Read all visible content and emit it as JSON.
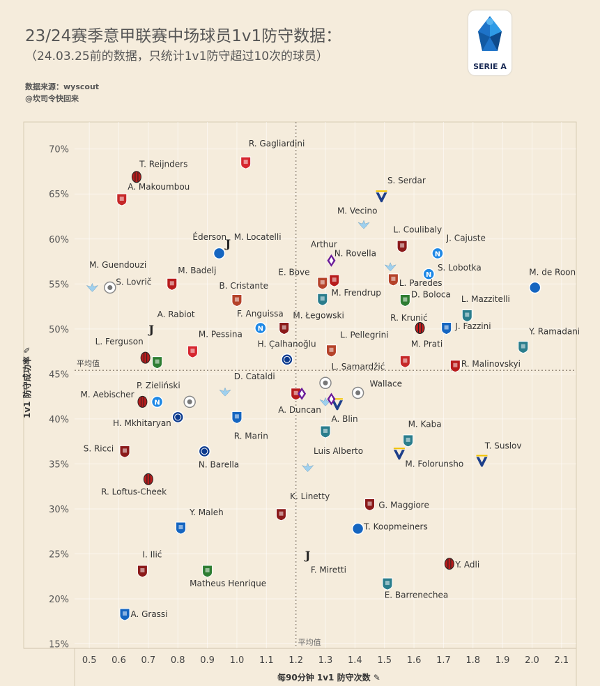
{
  "header": {
    "title_line1": "23/24赛季意甲联赛中场球员1v1防守数据：",
    "title_line2": "（24.03.25前的数据，只统计1v1防守超过10次的球员）",
    "source_line1": "数据来源：wyscout",
    "source_line2": "@坎司令快回来",
    "logo_text": "SERIE A"
  },
  "chart_data": {
    "type": "scatter",
    "xlabel": "每90分钟 1v1 防守次数",
    "ylabel": "1v1 防守成功率",
    "xlim": [
      0.45,
      2.15
    ],
    "ylim": [
      14.5,
      73
    ],
    "xticks": [
      "0.5",
      "0.6",
      "0.7",
      "0.8",
      "0.9",
      "1.0",
      "1.1",
      "1.2",
      "1.3",
      "1.4",
      "1.5",
      "1.6",
      "1.7",
      "1.8",
      "1.9",
      "2.0",
      "2.1"
    ],
    "yticks": [
      "15%",
      "20%",
      "25%",
      "30%",
      "35%",
      "40%",
      "45%",
      "50%",
      "55%",
      "60%",
      "65%",
      "70%"
    ],
    "avg_x": 1.2,
    "avg_y": 45.4,
    "avg_label": "平均值",
    "grid": true,
    "points": [
      {
        "name": "R. Gagliardini",
        "x": 1.03,
        "y": 68.5,
        "color": "#d6262f",
        "icon": "monza-crest"
      },
      {
        "name": "T. Reijnders",
        "x": 0.66,
        "y": 66.9,
        "color": "#b71c1c",
        "icon": "milan-crest"
      },
      {
        "name": "A. Makoumbou",
        "x": 0.61,
        "y": 64.4,
        "color": "#c62828",
        "icon": "cagliari-crest"
      },
      {
        "name": "S. Serdar",
        "x": 1.49,
        "y": 64.7,
        "color": "#1d3f8a",
        "icon": "verona-crest"
      },
      {
        "name": "M. Vecino",
        "x": 1.43,
        "y": 61.6,
        "color": "#9fd0ee",
        "icon": "lazio-crest"
      },
      {
        "name": "Éderson",
        "x": 0.94,
        "y": 58.4,
        "color": "#1565c0",
        "icon": "atalanta-crest"
      },
      {
        "name": "M. Locatelli",
        "x": 0.97,
        "y": 59.5,
        "color": "#222222",
        "icon": "juventus-crest"
      },
      {
        "name": "L. Coulibaly",
        "x": 1.56,
        "y": 59.2,
        "color": "#8b1a1a",
        "icon": "salernitana-crest"
      },
      {
        "name": "J. Cajuste",
        "x": 1.68,
        "y": 58.4,
        "color": "#1e88e5",
        "icon": "napoli-crest"
      },
      {
        "name": "Arthur",
        "x": 1.32,
        "y": 57.6,
        "color": "#6a1b9a",
        "icon": "fiorentina-crest"
      },
      {
        "name": "N. Rovella",
        "x": 1.52,
        "y": 56.9,
        "color": "#9fd0ee",
        "icon": "lazio-crest"
      },
      {
        "name": "M. Guendouzi",
        "x": 0.51,
        "y": 54.6,
        "color": "#9fd0ee",
        "icon": "lazio-crest"
      },
      {
        "name": "S. Lovrič",
        "x": 0.57,
        "y": 54.6,
        "color": "#bbbbbb",
        "icon": "udinese-crest"
      },
      {
        "name": "M. Badelj",
        "x": 0.78,
        "y": 55.0,
        "color": "#b71c1c",
        "icon": "genoa-crest"
      },
      {
        "name": "E. Bove",
        "x": 1.29,
        "y": 55.1,
        "color": "#b5432a",
        "icon": "roma-crest"
      },
      {
        "name": "M. Frendrup",
        "x": 1.33,
        "y": 55.4,
        "color": "#b71c1c",
        "icon": "genoa-crest"
      },
      {
        "name": "L. Paredes",
        "x": 1.53,
        "y": 55.5,
        "color": "#b5432a",
        "icon": "roma-crest"
      },
      {
        "name": "S. Lobotka",
        "x": 1.65,
        "y": 56.1,
        "color": "#1e88e5",
        "icon": "napoli-crest"
      },
      {
        "name": "M. de Roon",
        "x": 2.01,
        "y": 54.6,
        "color": "#1565c0",
        "icon": "atalanta-crest"
      },
      {
        "name": "B. Cristante",
        "x": 1.0,
        "y": 53.2,
        "color": "#b5432a",
        "icon": "roma-crest"
      },
      {
        "name": "D. Boloca",
        "x": 1.57,
        "y": 53.2,
        "color": "#2e7d32",
        "icon": "sassuolo-crest"
      },
      {
        "name": "L. Mazzitelli",
        "x": 1.29,
        "y": 53.3,
        "color": "#2a7d8c",
        "icon": "frosinone-crest"
      },
      {
        "name": "L. Mazzitelli-icon2",
        "x": 1.78,
        "y": 51.5,
        "color": "#2a7d8c",
        "icon": "frosinone-crest"
      },
      {
        "name": "A. Rabiot",
        "x": 0.71,
        "y": 50.0,
        "color": "#222222",
        "icon": "juventus-crest"
      },
      {
        "name": "F. Anguissa",
        "x": 1.08,
        "y": 50.1,
        "color": "#1e88e5",
        "icon": "napoli-crest"
      },
      {
        "name": "M. Łegowski",
        "x": 1.16,
        "y": 50.1,
        "color": "#8b1a1a",
        "icon": "salernitana-crest"
      },
      {
        "name": "R. Krunić",
        "x": 1.62,
        "y": 50.1,
        "color": "#b71c1c",
        "icon": "milan-crest"
      },
      {
        "name": "J. Fazzini",
        "x": 1.71,
        "y": 50.1,
        "color": "#1565c0",
        "icon": "empoli-crest"
      },
      {
        "name": "Y. Ramadani",
        "x": 1.97,
        "y": 48.0,
        "color": "#2a7d8c",
        "icon": "lecce-crest"
      },
      {
        "name": "L. Ferguson",
        "x": 0.69,
        "y": 46.8,
        "color": "#b71c1c",
        "icon": "bologna-crest"
      },
      {
        "name": "L. Ferguson-2",
        "x": 0.73,
        "y": 46.3,
        "color": "#2e7d32",
        "icon": "sassuolo-crest"
      },
      {
        "name": "M. Pessina",
        "x": 0.85,
        "y": 47.5,
        "color": "#d6262f",
        "icon": "monza-crest"
      },
      {
        "name": "L. Pellegrini",
        "x": 1.32,
        "y": 47.6,
        "color": "#b5432a",
        "icon": "roma-crest"
      },
      {
        "name": "M. Prati",
        "x": 1.57,
        "y": 46.4,
        "color": "#c62828",
        "icon": "cagliari-crest"
      },
      {
        "name": "H. Çalhanoğlu",
        "x": 1.17,
        "y": 46.6,
        "color": "#0d3b8e",
        "icon": "inter-crest"
      },
      {
        "name": "R. Malinovskyi",
        "x": 1.74,
        "y": 45.9,
        "color": "#b71c1c",
        "icon": "genoa-crest"
      },
      {
        "name": "L. Samardžić",
        "x": 1.3,
        "y": 44.0,
        "color": "#bbbbbb",
        "icon": "udinese-crest"
      },
      {
        "name": "D. Cataldi",
        "x": 0.96,
        "y": 43.0,
        "color": "#9fd0ee",
        "icon": "lazio-crest"
      },
      {
        "name": "Wallace",
        "x": 1.41,
        "y": 42.9,
        "color": "#bbbbbb",
        "icon": "udinese-crest"
      },
      {
        "name": "M. Aebischer",
        "x": 0.68,
        "y": 41.9,
        "color": "#b71c1c",
        "icon": "bologna-crest"
      },
      {
        "name": "P. Zieliński",
        "x": 0.73,
        "y": 41.9,
        "color": "#1e88e5",
        "icon": "napoli-crest"
      },
      {
        "name": "P. Zieliński-udinese",
        "x": 0.84,
        "y": 41.9,
        "color": "#bbbbbb",
        "icon": "udinese-crest"
      },
      {
        "name": "A. Duncan",
        "x": 1.2,
        "y": 42.8,
        "color": "#b71c1c",
        "icon": "genoa-crest"
      },
      {
        "name": "A. Duncan-fio",
        "x": 1.22,
        "y": 42.8,
        "color": "#6a1b9a",
        "icon": "fiorentina-crest"
      },
      {
        "name": "A. Blin",
        "x": 1.34,
        "y": 41.6,
        "color": "#1d3f8a",
        "icon": "verona-crest"
      },
      {
        "name": "A. Blin-lazio",
        "x": 1.3,
        "y": 41.9,
        "color": "#9fd0ee",
        "icon": "lazio-crest"
      },
      {
        "name": "A. Blin-fio",
        "x": 1.32,
        "y": 42.2,
        "color": "#6a1b9a",
        "icon": "fiorentina-crest"
      },
      {
        "name": "H. Mkhitaryan",
        "x": 0.8,
        "y": 40.2,
        "color": "#0d3b8e",
        "icon": "inter-crest"
      },
      {
        "name": "R. Marin",
        "x": 1.0,
        "y": 40.2,
        "color": "#1565c0",
        "icon": "empoli-crest"
      },
      {
        "name": "R. Marin-lecce",
        "x": 1.3,
        "y": 38.6,
        "color": "#2a7d8c",
        "icon": "lecce-crest"
      },
      {
        "name": "M. Kaba",
        "x": 1.58,
        "y": 37.6,
        "color": "#2a7d8c",
        "icon": "lecce-crest"
      },
      {
        "name": "S. Ricci",
        "x": 0.62,
        "y": 36.4,
        "color": "#8b1a1a",
        "icon": "torino-crest"
      },
      {
        "name": "N. Barella",
        "x": 0.89,
        "y": 36.4,
        "color": "#0d3b8e",
        "icon": "inter-crest"
      },
      {
        "name": "M. Folorunsho",
        "x": 1.55,
        "y": 36.1,
        "color": "#1d3f8a",
        "icon": "verona-crest"
      },
      {
        "name": "T. Suslov",
        "x": 1.83,
        "y": 35.3,
        "color": "#1d3f8a",
        "icon": "verona-crest"
      },
      {
        "name": "Luis Alberto",
        "x": 1.24,
        "y": 34.6,
        "color": "#9fd0ee",
        "icon": "lazio-crest"
      },
      {
        "name": "R. Loftus-Cheek",
        "x": 0.7,
        "y": 33.3,
        "color": "#b71c1c",
        "icon": "milan-crest"
      },
      {
        "name": "G. Maggiore",
        "x": 1.45,
        "y": 30.5,
        "color": "#8b1a1a",
        "icon": "salernitana-crest"
      },
      {
        "name": "K. Linetty",
        "x": 1.15,
        "y": 29.4,
        "color": "#8b1a1a",
        "icon": "torino-crest"
      },
      {
        "name": "Y. Maleh",
        "x": 0.81,
        "y": 27.9,
        "color": "#1565c0",
        "icon": "empoli-crest"
      },
      {
        "name": "T. Koopmeiners",
        "x": 1.41,
        "y": 27.8,
        "color": "#1565c0",
        "icon": "atalanta-crest"
      },
      {
        "name": "F. Miretti",
        "x": 1.24,
        "y": 24.9,
        "color": "#222222",
        "icon": "juventus-crest"
      },
      {
        "name": "Y. Adli",
        "x": 1.72,
        "y": 23.9,
        "color": "#b71c1c",
        "icon": "milan-crest"
      },
      {
        "name": "I. Ilić",
        "x": 0.68,
        "y": 23.1,
        "color": "#8b1a1a",
        "icon": "torino-crest"
      },
      {
        "name": "Matheus Henrique",
        "x": 0.9,
        "y": 23.1,
        "color": "#2e7d32",
        "icon": "sassuolo-crest"
      },
      {
        "name": "E. Barrenechea",
        "x": 1.51,
        "y": 21.7,
        "color": "#2a7d8c",
        "icon": "frosinone-crest"
      },
      {
        "name": "A. Grassi",
        "x": 0.62,
        "y": 18.3,
        "color": "#1565c0",
        "icon": "empoli-crest"
      }
    ],
    "labels": [
      {
        "text": "R. Gagliardini",
        "x": 1.04,
        "y": 70.3,
        "anchor": "start"
      },
      {
        "text": "T. Reijnders",
        "x": 0.67,
        "y": 68.0,
        "anchor": "start"
      },
      {
        "text": "A. Makoumbou",
        "x": 0.63,
        "y": 65.5,
        "anchor": "start"
      },
      {
        "text": "S. Serdar",
        "x": 1.51,
        "y": 66.2,
        "anchor": "start"
      },
      {
        "text": "M. Vecino",
        "x": 1.34,
        "y": 62.8,
        "anchor": "start"
      },
      {
        "text": "Éderson",
        "x": 0.85,
        "y": 59.9,
        "anchor": "start"
      },
      {
        "text": "M. Locatelli",
        "x": 0.99,
        "y": 59.9,
        "anchor": "start"
      },
      {
        "text": "L. Coulibaly",
        "x": 1.53,
        "y": 60.7,
        "anchor": "start"
      },
      {
        "text": "J. Cajuste",
        "x": 1.71,
        "y": 59.8,
        "anchor": "start"
      },
      {
        "text": "Arthur",
        "x": 1.25,
        "y": 59.1,
        "anchor": "start"
      },
      {
        "text": "N. Rovella",
        "x": 1.33,
        "y": 58.1,
        "anchor": "start"
      },
      {
        "text": "M. Guendouzi",
        "x": 0.5,
        "y": 56.8,
        "anchor": "start"
      },
      {
        "text": "S. Lovrič",
        "x": 0.59,
        "y": 54.9,
        "anchor": "start"
      },
      {
        "text": "M. Badelj",
        "x": 0.8,
        "y": 56.2,
        "anchor": "start"
      },
      {
        "text": "E. Bove",
        "x": 1.14,
        "y": 56.0,
        "anchor": "start"
      },
      {
        "text": "M. Frendrup",
        "x": 1.32,
        "y": 53.7,
        "anchor": "start"
      },
      {
        "text": "L. Paredes",
        "x": 1.55,
        "y": 54.8,
        "anchor": "start"
      },
      {
        "text": "S. Lobotka",
        "x": 1.68,
        "y": 56.5,
        "anchor": "start"
      },
      {
        "text": "M. de Roon",
        "x": 1.99,
        "y": 56.0,
        "anchor": "start"
      },
      {
        "text": "B. Cristante",
        "x": 0.94,
        "y": 54.5,
        "anchor": "start"
      },
      {
        "text": "D. Boloca",
        "x": 1.59,
        "y": 53.5,
        "anchor": "start"
      },
      {
        "text": "L. Mazzitelli",
        "x": 1.76,
        "y": 53.0,
        "anchor": "start"
      },
      {
        "text": "A. Rabiot",
        "x": 0.73,
        "y": 51.3,
        "anchor": "start"
      },
      {
        "text": "F. Anguissa",
        "x": 1.0,
        "y": 51.4,
        "anchor": "start"
      },
      {
        "text": "M. Łegowski",
        "x": 1.19,
        "y": 51.2,
        "anchor": "start"
      },
      {
        "text": "R. Krunić",
        "x": 1.52,
        "y": 50.9,
        "anchor": "start"
      },
      {
        "text": "J. Fazzini",
        "x": 1.74,
        "y": 50.0,
        "anchor": "start"
      },
      {
        "text": "Y. Ramadani",
        "x": 1.99,
        "y": 49.4,
        "anchor": "start"
      },
      {
        "text": "L. Ferguson",
        "x": 0.52,
        "y": 48.3,
        "anchor": "start"
      },
      {
        "text": "M. Pessina",
        "x": 0.87,
        "y": 49.1,
        "anchor": "start"
      },
      {
        "text": "L. Pellegrini",
        "x": 1.35,
        "y": 49.0,
        "anchor": "start"
      },
      {
        "text": "M. Prati",
        "x": 1.59,
        "y": 48.0,
        "anchor": "start"
      },
      {
        "text": "H. Çalhanoğlu",
        "x": 1.07,
        "y": 48.0,
        "anchor": "start"
      },
      {
        "text": "R. Malinovskyi",
        "x": 1.76,
        "y": 45.8,
        "anchor": "start"
      },
      {
        "text": "L. Samardžić",
        "x": 1.32,
        "y": 45.5,
        "anchor": "start"
      },
      {
        "text": "D. Cataldi",
        "x": 0.99,
        "y": 44.4,
        "anchor": "start"
      },
      {
        "text": "Wallace",
        "x": 1.45,
        "y": 43.6,
        "anchor": "start"
      },
      {
        "text": "M. Aebischer",
        "x": 0.47,
        "y": 42.4,
        "anchor": "start"
      },
      {
        "text": "P. Zieliński",
        "x": 0.66,
        "y": 43.4,
        "anchor": "start"
      },
      {
        "text": "A. Duncan",
        "x": 1.14,
        "y": 40.7,
        "anchor": "start"
      },
      {
        "text": "A. Blin",
        "x": 1.32,
        "y": 39.7,
        "anchor": "start"
      },
      {
        "text": "H. Mkhitaryan",
        "x": 0.58,
        "y": 39.2,
        "anchor": "start"
      },
      {
        "text": "R. Marin",
        "x": 0.99,
        "y": 37.8,
        "anchor": "start"
      },
      {
        "text": "M. Kaba",
        "x": 1.58,
        "y": 39.1,
        "anchor": "start"
      },
      {
        "text": "S. Ricci",
        "x": 0.48,
        "y": 36.4,
        "anchor": "start"
      },
      {
        "text": "N. Barella",
        "x": 0.87,
        "y": 34.6,
        "anchor": "start"
      },
      {
        "text": "M. Folorunsho",
        "x": 1.57,
        "y": 34.7,
        "anchor": "start"
      },
      {
        "text": "T. Suslov",
        "x": 1.84,
        "y": 36.7,
        "anchor": "start"
      },
      {
        "text": "Luis Alberto",
        "x": 1.26,
        "y": 36.1,
        "anchor": "start"
      },
      {
        "text": "R. Loftus-Cheek",
        "x": 0.54,
        "y": 31.6,
        "anchor": "start"
      },
      {
        "text": "G. Maggiore",
        "x": 1.48,
        "y": 30.1,
        "anchor": "start"
      },
      {
        "text": "K. Linetty",
        "x": 1.18,
        "y": 31.1,
        "anchor": "start"
      },
      {
        "text": "Y. Maleh",
        "x": 0.84,
        "y": 29.3,
        "anchor": "start"
      },
      {
        "text": "T. Koopmeiners",
        "x": 1.43,
        "y": 27.7,
        "anchor": "start"
      },
      {
        "text": "F. Miretti",
        "x": 1.25,
        "y": 22.9,
        "anchor": "start"
      },
      {
        "text": "Y. Adli",
        "x": 1.74,
        "y": 23.5,
        "anchor": "start"
      },
      {
        "text": "I. Ilić",
        "x": 0.68,
        "y": 24.6,
        "anchor": "start"
      },
      {
        "text": "Matheus Henrique",
        "x": 0.84,
        "y": 21.4,
        "anchor": "start"
      },
      {
        "text": "E. Barrenechea",
        "x": 1.5,
        "y": 20.1,
        "anchor": "start"
      },
      {
        "text": "A. Grassi",
        "x": 0.64,
        "y": 18.0,
        "anchor": "start"
      }
    ]
  }
}
